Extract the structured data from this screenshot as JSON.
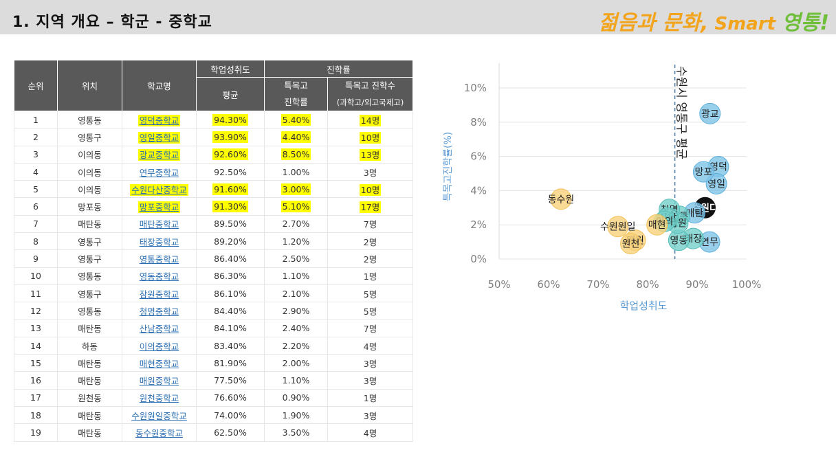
{
  "header": {
    "title": "1. 지역 개요 – 학군 - 중학교",
    "brand": [
      "젊음과 문화,",
      " Smart ",
      "영통",
      "!"
    ]
  },
  "table": {
    "headers": {
      "rank": "순위",
      "location": "위치",
      "school": "학교명",
      "achievement_group": "학업성취도",
      "achievement_avg": "평균",
      "advance_group": "진학률",
      "special_rate_line1": "특목고",
      "special_rate_line2": "진학률",
      "special_count_line1": "특목고 진학수",
      "special_count_line2": "(과학고/외고국제고)"
    },
    "rows": [
      {
        "rank": "1",
        "location": "영통동",
        "school": "영덕중학교",
        "avg": "94.30%",
        "rate": "5.40%",
        "count": "14명",
        "highlight": true
      },
      {
        "rank": "2",
        "location": "영통구",
        "school": "영일중학교",
        "avg": "93.90%",
        "rate": "4.40%",
        "count": "10명",
        "highlight": true
      },
      {
        "rank": "3",
        "location": "이의동",
        "school": "광교중학교",
        "avg": "92.60%",
        "rate": "8.50%",
        "count": "13명",
        "highlight": true
      },
      {
        "rank": "4",
        "location": "이의동",
        "school": "연무중학교",
        "avg": "92.50%",
        "rate": "1.00%",
        "count": "3명",
        "highlight": false
      },
      {
        "rank": "5",
        "location": "이의동",
        "school": "수원다산중학교",
        "avg": "91.60%",
        "rate": "3.00%",
        "count": "10명",
        "highlight": true
      },
      {
        "rank": "6",
        "location": "망포동",
        "school": "망포중학교",
        "avg": "91.30%",
        "rate": "5.10%",
        "count": "17명",
        "highlight": true
      },
      {
        "rank": "7",
        "location": "매탄동",
        "school": "매탄중학교",
        "avg": "89.50%",
        "rate": "2.70%",
        "count": "7명",
        "highlight": false
      },
      {
        "rank": "8",
        "location": "영통구",
        "school": "태장중학교",
        "avg": "89.20%",
        "rate": "1.20%",
        "count": "2명",
        "highlight": false
      },
      {
        "rank": "9",
        "location": "영통구",
        "school": "영통중학교",
        "avg": "86.40%",
        "rate": "2.50%",
        "count": "2명",
        "highlight": false
      },
      {
        "rank": "10",
        "location": "영통동",
        "school": "영동중학교",
        "avg": "86.30%",
        "rate": "1.10%",
        "count": "1명",
        "highlight": false
      },
      {
        "rank": "11",
        "location": "영통구",
        "school": "잠원중학교",
        "avg": "86.10%",
        "rate": "2.10%",
        "count": "5명",
        "highlight": false
      },
      {
        "rank": "12",
        "location": "영통동",
        "school": "청명중학교",
        "avg": "84.40%",
        "rate": "2.90%",
        "count": "5명",
        "highlight": false
      },
      {
        "rank": "13",
        "location": "매탄동",
        "school": "산남중학교",
        "avg": "84.10%",
        "rate": "2.40%",
        "count": "7명",
        "highlight": false
      },
      {
        "rank": "14",
        "location": "하동",
        "school": "이의중학교",
        "avg": "83.40%",
        "rate": "2.20%",
        "count": "4명",
        "highlight": false
      },
      {
        "rank": "15",
        "location": "매탄동",
        "school": "매현중학교",
        "avg": "81.90%",
        "rate": "2.00%",
        "count": "3명",
        "highlight": false
      },
      {
        "rank": "16",
        "location": "매탄동",
        "school": "매원중학교",
        "avg": "77.50%",
        "rate": "1.10%",
        "count": "3명",
        "highlight": false
      },
      {
        "rank": "17",
        "location": "원천동",
        "school": "원천중학교",
        "avg": "76.60%",
        "rate": "0.90%",
        "count": "1명",
        "highlight": false
      },
      {
        "rank": "18",
        "location": "매탄동",
        "school": "수원원일중학교",
        "avg": "74.00%",
        "rate": "1.90%",
        "count": "3명",
        "highlight": false
      },
      {
        "rank": "19",
        "location": "매탄동",
        "school": "동수원중학교",
        "avg": "62.50%",
        "rate": "3.50%",
        "count": "4명",
        "highlight": false
      }
    ]
  },
  "chart_data": {
    "type": "scatter",
    "xlabel": "학업성취도",
    "ylabel": "특목고진학률(%)",
    "xlim": [
      50,
      100
    ],
    "ylim": [
      0,
      10
    ],
    "xticks": [
      "50%",
      "60%",
      "70%",
      "80%",
      "90%",
      "100%"
    ],
    "yticks": [
      "0%",
      "2%",
      "4%",
      "6%",
      "8%",
      "10%"
    ],
    "grid": "horizontal",
    "reference_line": {
      "x": 85.5,
      "label": "수원시 영통구 평균"
    },
    "colors": {
      "blue": "#7ec3e6",
      "teal": "#76d0cb",
      "yellow": "#f9d27a",
      "black": "#111111"
    },
    "points": [
      {
        "label": "영덕",
        "x": 94.3,
        "y": 5.4,
        "color": "blue"
      },
      {
        "label": "영일",
        "x": 93.9,
        "y": 4.4,
        "color": "blue"
      },
      {
        "label": "광교",
        "x": 92.6,
        "y": 8.5,
        "color": "blue"
      },
      {
        "label": "연무",
        "x": 92.5,
        "y": 1.0,
        "color": "blue"
      },
      {
        "label": "수원다",
        "x": 91.6,
        "y": 3.0,
        "color": "black"
      },
      {
        "label": "망포",
        "x": 91.3,
        "y": 5.1,
        "color": "blue"
      },
      {
        "label": "매탄",
        "x": 89.5,
        "y": 2.7,
        "color": "blue"
      },
      {
        "label": "태장",
        "x": 89.2,
        "y": 1.2,
        "color": "teal"
      },
      {
        "label": "영통",
        "x": 86.4,
        "y": 2.5,
        "color": "teal"
      },
      {
        "label": "영동",
        "x": 86.3,
        "y": 1.1,
        "color": "teal"
      },
      {
        "label": "잠원",
        "x": 86.1,
        "y": 2.1,
        "color": "teal"
      },
      {
        "label": "청명",
        "x": 84.4,
        "y": 2.9,
        "color": "teal"
      },
      {
        "label": "산남",
        "x": 84.1,
        "y": 2.4,
        "color": "teal"
      },
      {
        "label": "이의",
        "x": 83.4,
        "y": 2.2,
        "color": "teal"
      },
      {
        "label": "매현",
        "x": 81.9,
        "y": 2.0,
        "color": "yellow"
      },
      {
        "label": "매원",
        "x": 77.5,
        "y": 1.1,
        "color": "yellow"
      },
      {
        "label": "원천",
        "x": 76.6,
        "y": 0.9,
        "color": "yellow"
      },
      {
        "label": "수원원일",
        "x": 74.0,
        "y": 1.9,
        "color": "yellow"
      },
      {
        "label": "동수원",
        "x": 62.5,
        "y": 3.5,
        "color": "yellow"
      }
    ]
  }
}
